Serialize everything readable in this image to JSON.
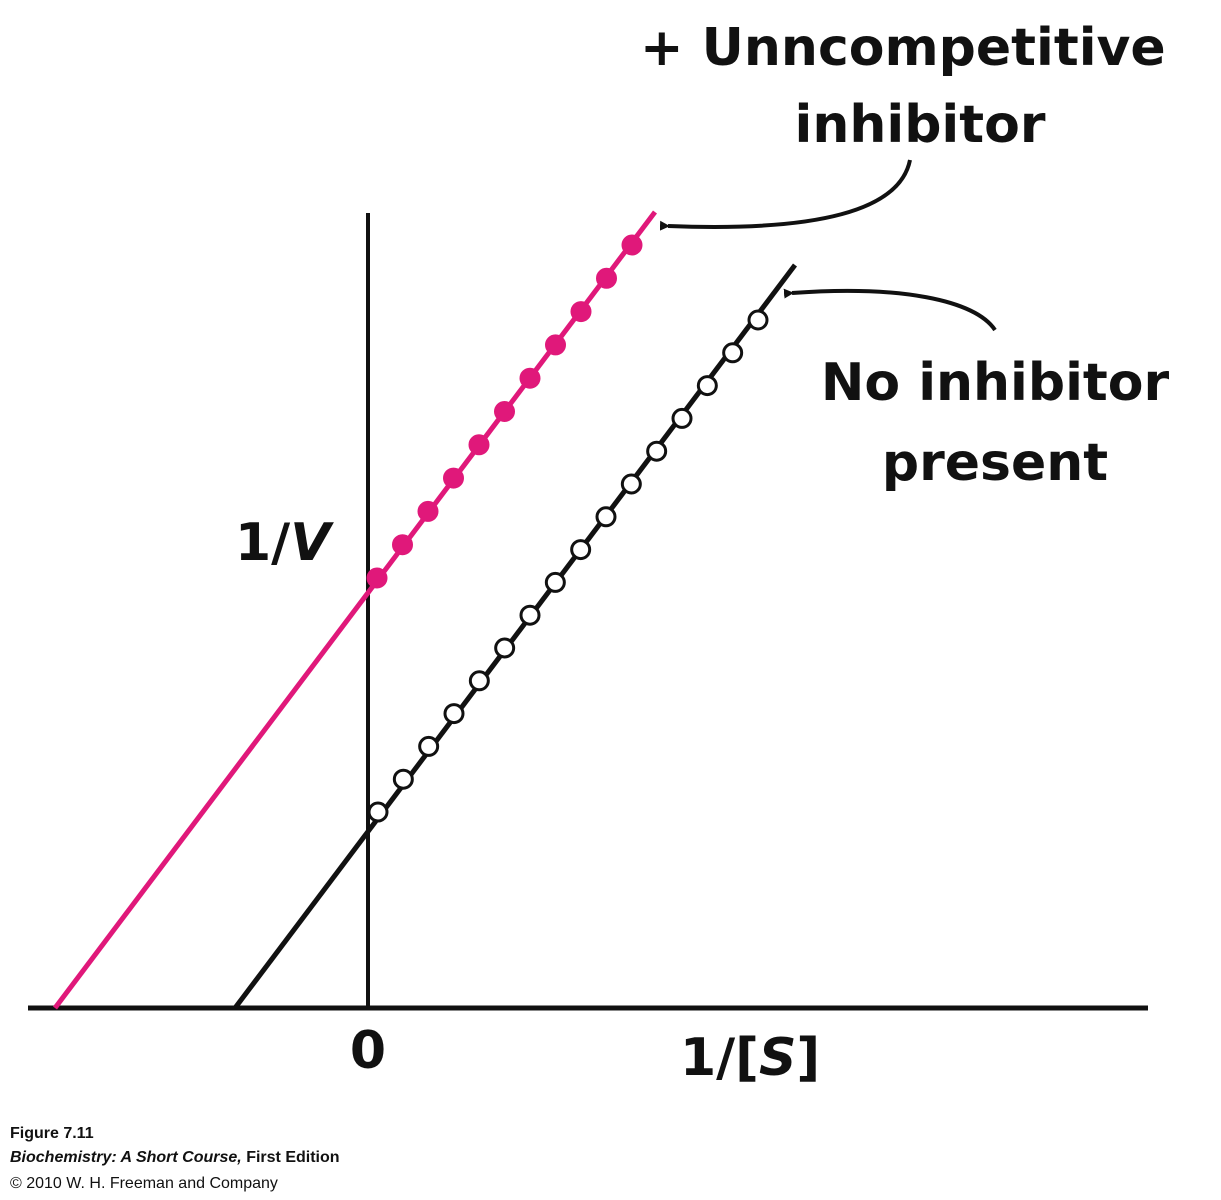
{
  "figure": {
    "inhibitor_label": [
      "+ Unncompetitive",
      "inhibitor"
    ],
    "no_inhibitor_label": [
      "No inhibitor",
      "present"
    ],
    "y_axis_label": {
      "prefix": "1/",
      "variable": "V"
    },
    "x_axis_label": {
      "prefix": "1/[",
      "variable": "S",
      "suffix": "]"
    },
    "origin_label": "0",
    "caption": {
      "figure": "Figure 7.11",
      "book": "Biochemistry: A Short Course,",
      "edition": " First Edition",
      "copyright": "© 2010 W. H. Freeman and Company"
    }
  }
}
